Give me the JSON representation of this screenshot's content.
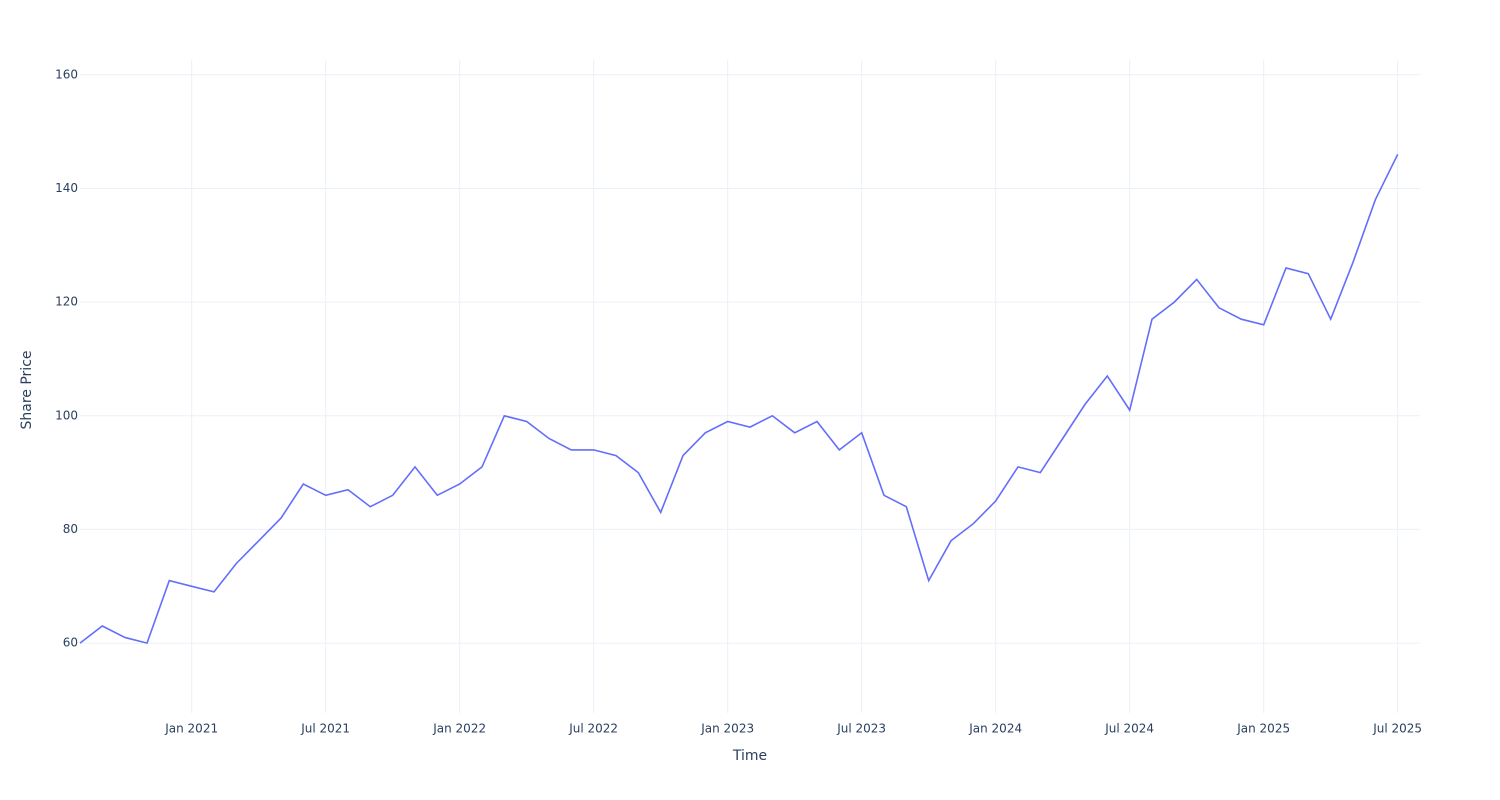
{
  "chart_data": {
    "type": "line",
    "x_label": "Time",
    "y_label": "Share Price",
    "x": [
      "2020-08",
      "2020-09",
      "2020-10",
      "2020-11",
      "2020-12",
      "2021-01",
      "2021-02",
      "2021-03",
      "2021-04",
      "2021-05",
      "2021-06",
      "2021-07",
      "2021-08",
      "2021-09",
      "2021-10",
      "2021-11",
      "2021-12",
      "2022-01",
      "2022-02",
      "2022-03",
      "2022-04",
      "2022-05",
      "2022-06",
      "2022-07",
      "2022-08",
      "2022-09",
      "2022-10",
      "2022-11",
      "2022-12",
      "2023-01",
      "2023-02",
      "2023-03",
      "2023-04",
      "2023-05",
      "2023-06",
      "2023-07",
      "2023-08",
      "2023-09",
      "2023-10",
      "2023-11",
      "2023-12",
      "2024-01",
      "2024-02",
      "2024-03",
      "2024-04",
      "2024-05",
      "2024-06",
      "2024-07",
      "2024-08",
      "2024-09",
      "2024-10",
      "2024-11",
      "2024-12",
      "2025-01",
      "2025-02",
      "2025-03",
      "2025-04",
      "2025-05",
      "2025-06",
      "2025-07"
    ],
    "series": [
      {
        "name": "Share Price",
        "color": "#636efa",
        "values": [
          60,
          63,
          61,
          60,
          71,
          70,
          69,
          74,
          78,
          82,
          88,
          86,
          87,
          84,
          86,
          91,
          86,
          88,
          91,
          100,
          99,
          96,
          94,
          94,
          93,
          90,
          83,
          93,
          97,
          99,
          98,
          100,
          97,
          99,
          94,
          97,
          86,
          84,
          71,
          78,
          81,
          85,
          91,
          90,
          96,
          102,
          107,
          101,
          117,
          120,
          124,
          119,
          117,
          116,
          126,
          125,
          117,
          127,
          138,
          146
        ]
      }
    ],
    "xlim": [
      "2020-08",
      "2025-08"
    ],
    "xticks": [
      {
        "value": "2021-01",
        "label": "Jan 2021"
      },
      {
        "value": "2021-07",
        "label": "Jul 2021"
      },
      {
        "value": "2022-01",
        "label": "Jan 2022"
      },
      {
        "value": "2022-07",
        "label": "Jul 2022"
      },
      {
        "value": "2023-01",
        "label": "Jan 2023"
      },
      {
        "value": "2023-07",
        "label": "Jul 2023"
      },
      {
        "value": "2024-01",
        "label": "Jan 2024"
      },
      {
        "value": "2024-07",
        "label": "Jul 2024"
      },
      {
        "value": "2025-01",
        "label": "Jan 2025"
      },
      {
        "value": "2025-07",
        "label": "Jul 2025"
      }
    ],
    "ylim": [
      47.7,
      162.6
    ],
    "yticks": [
      60,
      80,
      100,
      120,
      140,
      160
    ],
    "grid": true
  }
}
